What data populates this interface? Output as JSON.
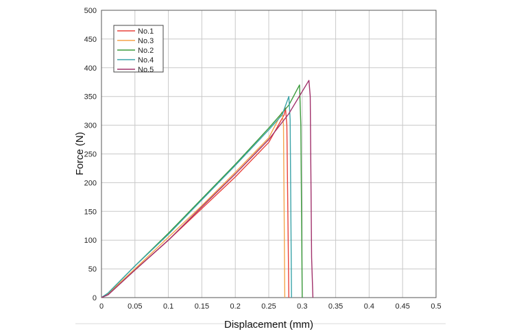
{
  "chart_data": {
    "type": "line",
    "title": "",
    "xlabel": "Displacement (mm)",
    "ylabel": "Force (N)",
    "xlim": [
      0,
      0.5
    ],
    "ylim": [
      0,
      500
    ],
    "x_ticks": [
      "0",
      "0.05",
      "0.1",
      "0.15",
      "0.2",
      "0.25",
      "0.3",
      "0.35",
      "0.4",
      "0.45",
      "0.5"
    ],
    "y_ticks": [
      "0",
      "50",
      "100",
      "150",
      "200",
      "250",
      "300",
      "350",
      "400",
      "450",
      "500"
    ],
    "grid": true,
    "legend_position": "top-left",
    "series": [
      {
        "name": "No.1",
        "color": "#e8403a",
        "x": [
          0,
          0.01,
          0.05,
          0.1,
          0.15,
          0.2,
          0.25,
          0.273,
          0.275,
          0.277,
          0.28
        ],
        "y": [
          0,
          6,
          48,
          100,
          155,
          210,
          270,
          318,
          330,
          300,
          0
        ]
      },
      {
        "name": "No.3",
        "color": "#f5a34a",
        "x": [
          0,
          0.01,
          0.05,
          0.1,
          0.15,
          0.2,
          0.25,
          0.27,
          0.272,
          0.274
        ],
        "y": [
          0,
          7,
          50,
          105,
          160,
          218,
          278,
          323,
          300,
          0
        ]
      },
      {
        "name": "No.2",
        "color": "#3a9a3a",
        "x": [
          0,
          0.01,
          0.05,
          0.1,
          0.15,
          0.2,
          0.25,
          0.28,
          0.296,
          0.298,
          0.3
        ],
        "y": [
          0,
          8,
          55,
          112,
          172,
          232,
          295,
          335,
          370,
          300,
          0
        ]
      },
      {
        "name": "No.4",
        "color": "#3aa3a8",
        "x": [
          0,
          0.01,
          0.05,
          0.1,
          0.15,
          0.2,
          0.25,
          0.27,
          0.28,
          0.282,
          0.284
        ],
        "y": [
          0,
          8,
          55,
          110,
          170,
          230,
          292,
          318,
          350,
          310,
          0
        ]
      },
      {
        "name": "No.5",
        "color": "#a0306a",
        "x": [
          0,
          0.01,
          0.05,
          0.1,
          0.15,
          0.2,
          0.25,
          0.28,
          0.31,
          0.312,
          0.314,
          0.316
        ],
        "y": [
          0,
          5,
          48,
          100,
          158,
          215,
          275,
          320,
          378,
          350,
          70,
          0
        ]
      }
    ]
  }
}
